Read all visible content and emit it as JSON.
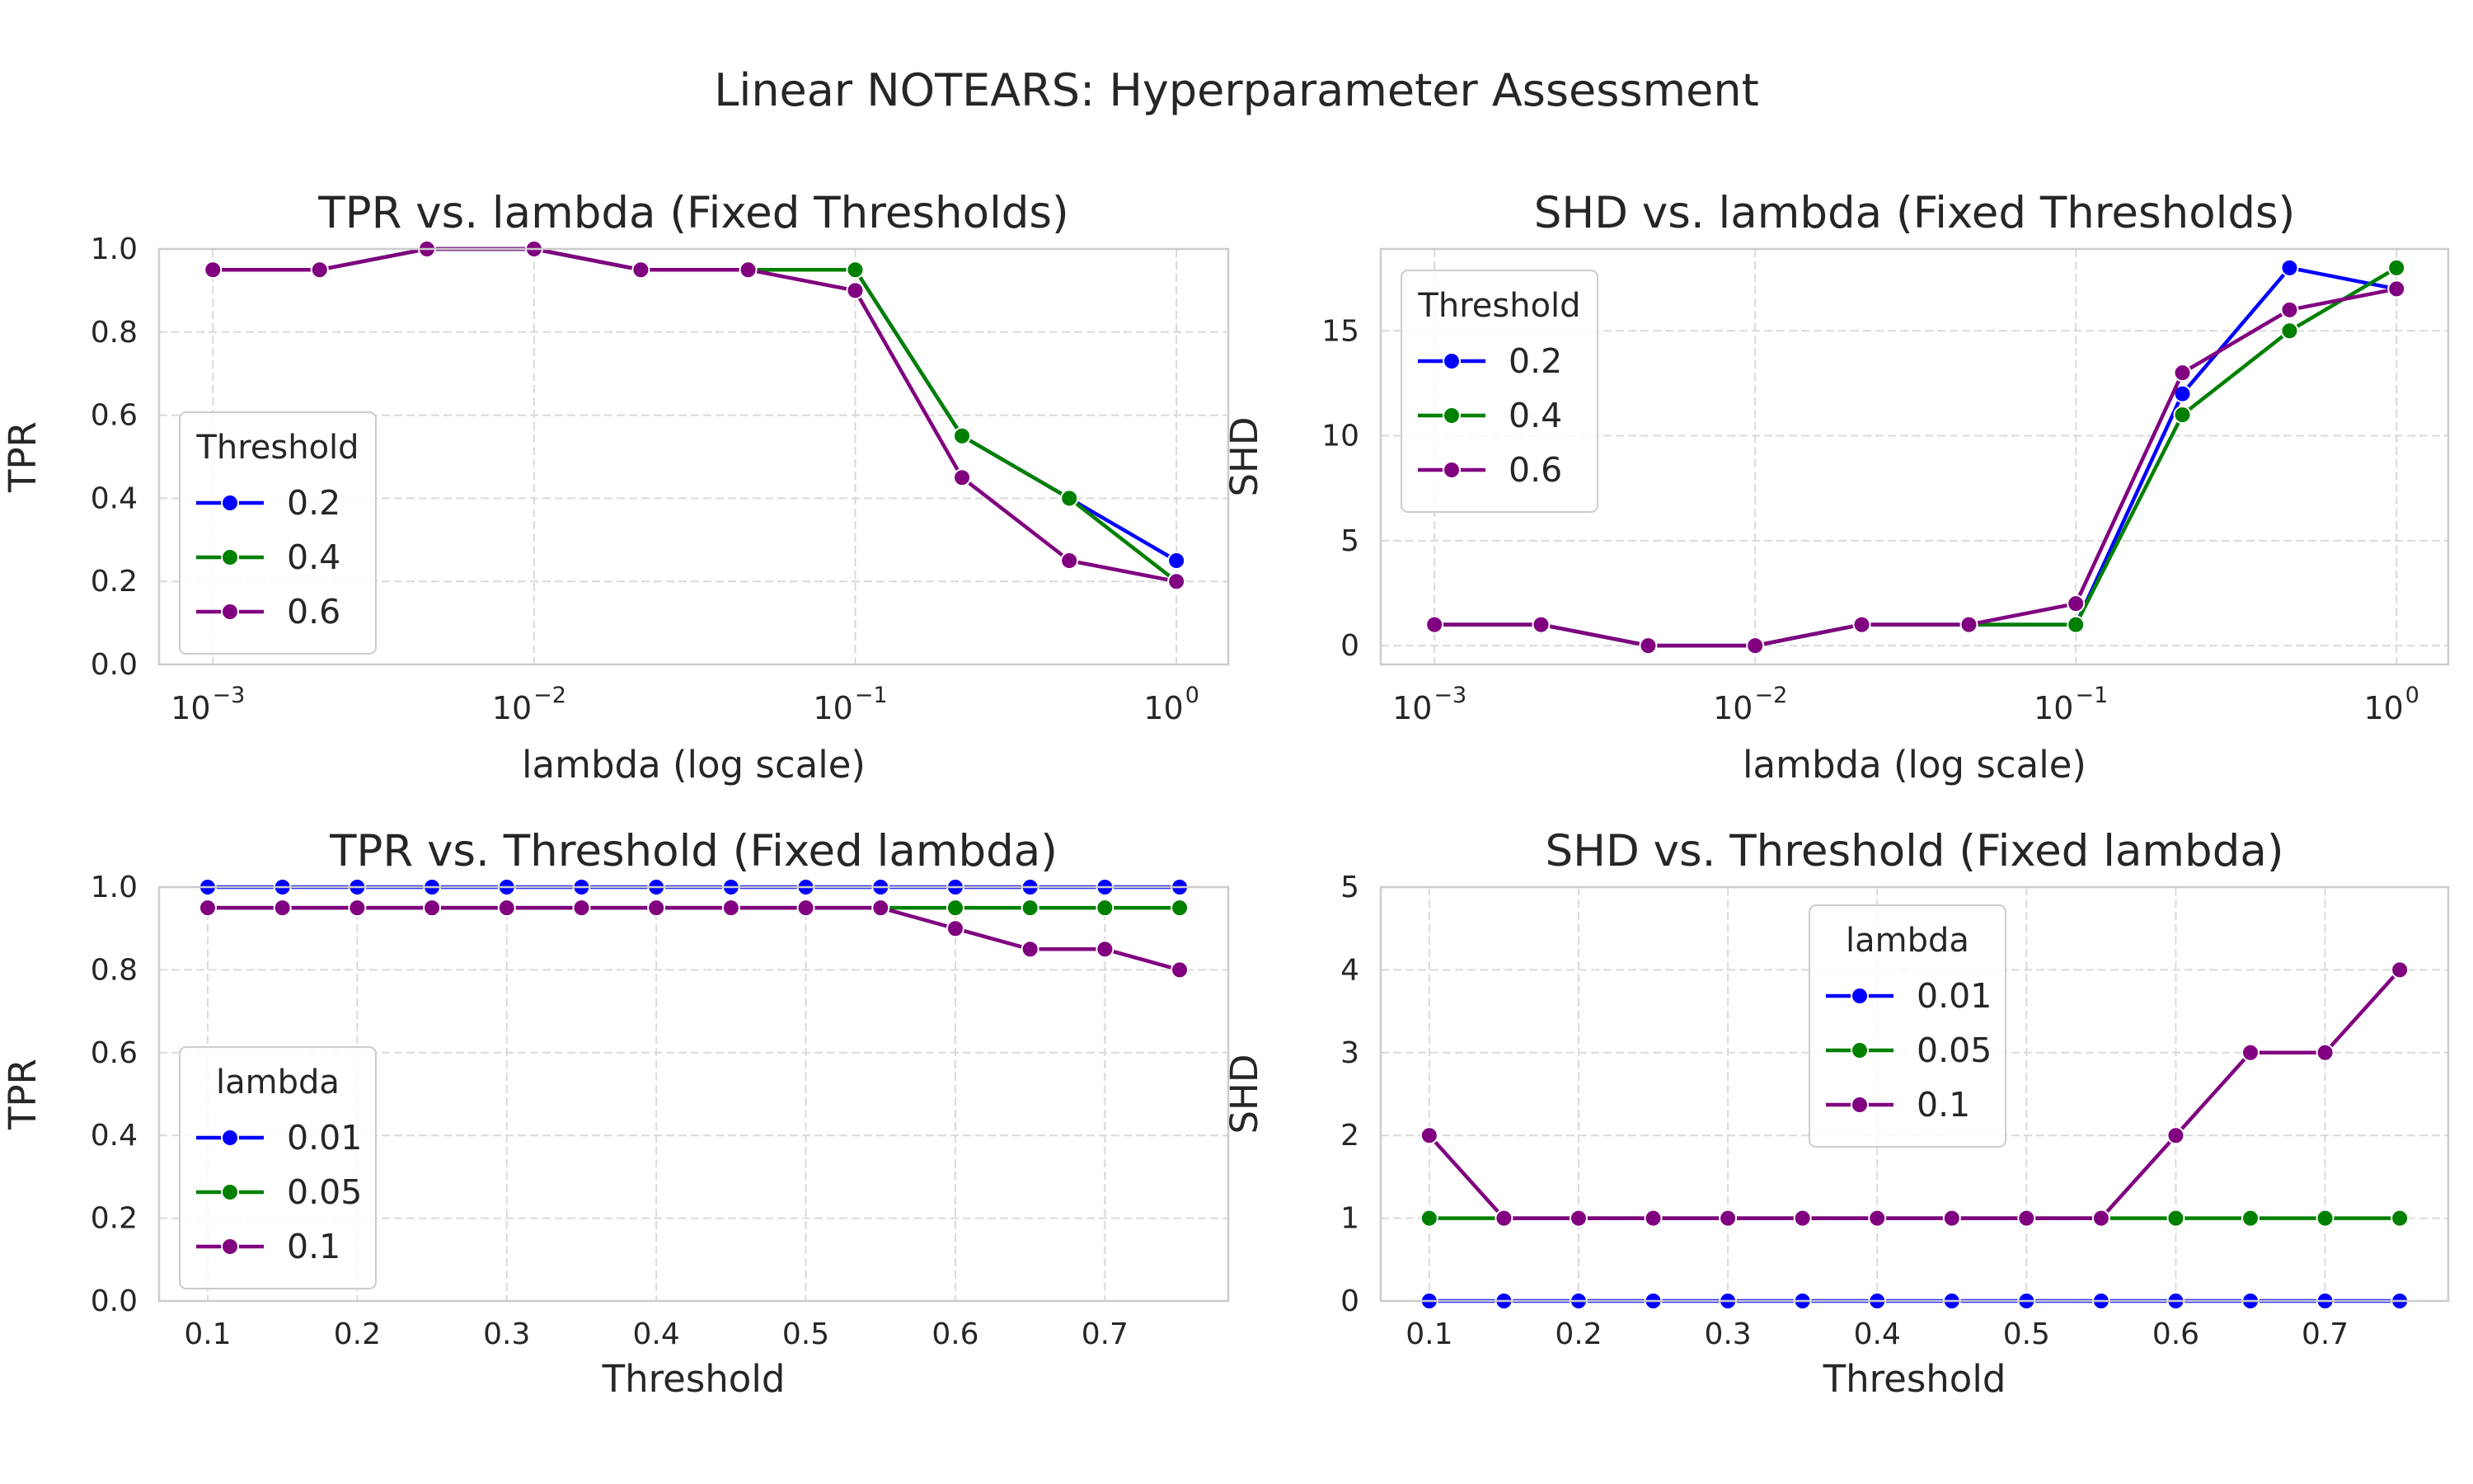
{
  "figure": {
    "suptitle": "Linear NOTEARS: Hyperparameter Assessment"
  },
  "chart_data": [
    {
      "type": "line",
      "title": "TPR vs. lambda (Fixed Thresholds)",
      "xlabel": "lambda (log scale)",
      "ylabel": "TPR",
      "xscale": "log",
      "xlim": [
        0.00068,
        1.45
      ],
      "ylim": [
        0,
        1.0
      ],
      "xtick_labels": [
        {
          "base": "10",
          "exp": "−3"
        },
        {
          "base": "10",
          "exp": "−2"
        },
        {
          "base": "10",
          "exp": "−1"
        },
        {
          "base": "10",
          "exp": "0"
        }
      ],
      "ytick_labels": [
        "0.0",
        "0.2",
        "0.4",
        "0.6",
        "0.8",
        "1.0"
      ],
      "grid": true,
      "legend": {
        "title": "Threshold",
        "placement": "center-left"
      },
      "x": [
        0.001,
        0.00215,
        0.00464,
        0.01,
        0.0215,
        0.0464,
        0.1,
        0.215,
        0.464,
        1.0
      ],
      "series": [
        {
          "name": "0.2",
          "color": "#0000ff",
          "values": [
            0.95,
            0.95,
            1.0,
            1.0,
            0.95,
            0.95,
            0.95,
            0.55,
            0.4,
            0.25
          ]
        },
        {
          "name": "0.4",
          "color": "#008000",
          "values": [
            0.95,
            0.95,
            1.0,
            1.0,
            0.95,
            0.95,
            0.95,
            0.55,
            0.4,
            0.2
          ]
        },
        {
          "name": "0.6",
          "color": "#800080",
          "values": [
            0.95,
            0.95,
            1.0,
            1.0,
            0.95,
            0.95,
            0.9,
            0.45,
            0.25,
            0.2
          ]
        }
      ]
    },
    {
      "type": "line",
      "title": "SHD vs. lambda (Fixed Thresholds)",
      "xlabel": "lambda (log scale)",
      "ylabel": "SHD",
      "xscale": "log",
      "xlim": [
        0.00068,
        1.45
      ],
      "ylim": [
        -0.9,
        18.9
      ],
      "xtick_labels": [
        {
          "base": "10",
          "exp": "−3"
        },
        {
          "base": "10",
          "exp": "−2"
        },
        {
          "base": "10",
          "exp": "−1"
        },
        {
          "base": "10",
          "exp": "0"
        }
      ],
      "ytick_labels": [
        "0",
        "5",
        "10",
        "15"
      ],
      "grid": true,
      "legend": {
        "title": "Threshold",
        "placement": "upper-left"
      },
      "x": [
        0.001,
        0.00215,
        0.00464,
        0.01,
        0.0215,
        0.0464,
        0.1,
        0.215,
        0.464,
        1.0
      ],
      "series": [
        {
          "name": "0.2",
          "color": "#0000ff",
          "values": [
            1,
            1,
            0,
            0,
            1,
            1,
            1,
            12,
            18,
            17
          ]
        },
        {
          "name": "0.4",
          "color": "#008000",
          "values": [
            1,
            1,
            0,
            0,
            1,
            1,
            1,
            11,
            15,
            18
          ]
        },
        {
          "name": "0.6",
          "color": "#800080",
          "values": [
            1,
            1,
            0,
            0,
            1,
            1,
            2,
            13,
            16,
            17
          ]
        }
      ]
    },
    {
      "type": "line",
      "title": "TPR vs. Threshold (Fixed lambda)",
      "xlabel": "Threshold",
      "ylabel": "TPR",
      "xscale": "linear",
      "xlim": [
        0.0675,
        0.7825
      ],
      "ylim": [
        0,
        1.0
      ],
      "xtick_labels": [
        "0.1",
        "0.2",
        "0.3",
        "0.4",
        "0.5",
        "0.6",
        "0.7"
      ],
      "ytick_labels": [
        "0.0",
        "0.2",
        "0.4",
        "0.6",
        "0.8",
        "1.0"
      ],
      "grid": true,
      "legend": {
        "title": "lambda",
        "placement": "lower-left"
      },
      "x": [
        0.1,
        0.15,
        0.2,
        0.25,
        0.3,
        0.35,
        0.4,
        0.45,
        0.5,
        0.55,
        0.6,
        0.65,
        0.7,
        0.75
      ],
      "series": [
        {
          "name": "0.01",
          "color": "#0000ff",
          "values": [
            1,
            1,
            1,
            1,
            1,
            1,
            1,
            1,
            1,
            1,
            1,
            1,
            1,
            1
          ]
        },
        {
          "name": "0.05",
          "color": "#008000",
          "values": [
            0.95,
            0.95,
            0.95,
            0.95,
            0.95,
            0.95,
            0.95,
            0.95,
            0.95,
            0.95,
            0.95,
            0.95,
            0.95,
            0.95
          ]
        },
        {
          "name": "0.1",
          "color": "#800080",
          "values": [
            0.95,
            0.95,
            0.95,
            0.95,
            0.95,
            0.95,
            0.95,
            0.95,
            0.95,
            0.95,
            0.9,
            0.85,
            0.85,
            0.8
          ]
        }
      ]
    },
    {
      "type": "line",
      "title": "SHD vs. Threshold (Fixed lambda)",
      "xlabel": "Threshold",
      "ylabel": "SHD",
      "xscale": "linear",
      "xlim": [
        0.0675,
        0.7825
      ],
      "ylim": [
        0,
        5
      ],
      "xtick_labels": [
        "0.1",
        "0.2",
        "0.3",
        "0.4",
        "0.5",
        "0.6",
        "0.7"
      ],
      "ytick_labels": [
        "0",
        "1",
        "2",
        "3",
        "4",
        "5"
      ],
      "grid": true,
      "legend": {
        "title": "lambda",
        "placement": "upper-center"
      },
      "x": [
        0.1,
        0.15,
        0.2,
        0.25,
        0.3,
        0.35,
        0.4,
        0.45,
        0.5,
        0.55,
        0.6,
        0.65,
        0.7,
        0.75
      ],
      "series": [
        {
          "name": "0.01",
          "color": "#0000ff",
          "values": [
            0,
            0,
            0,
            0,
            0,
            0,
            0,
            0,
            0,
            0,
            0,
            0,
            0,
            0
          ]
        },
        {
          "name": "0.05",
          "color": "#008000",
          "values": [
            1,
            1,
            1,
            1,
            1,
            1,
            1,
            1,
            1,
            1,
            1,
            1,
            1,
            1
          ]
        },
        {
          "name": "0.1",
          "color": "#800080",
          "values": [
            2,
            1,
            1,
            1,
            1,
            1,
            1,
            1,
            1,
            1,
            2,
            3,
            3,
            4
          ]
        }
      ]
    }
  ]
}
